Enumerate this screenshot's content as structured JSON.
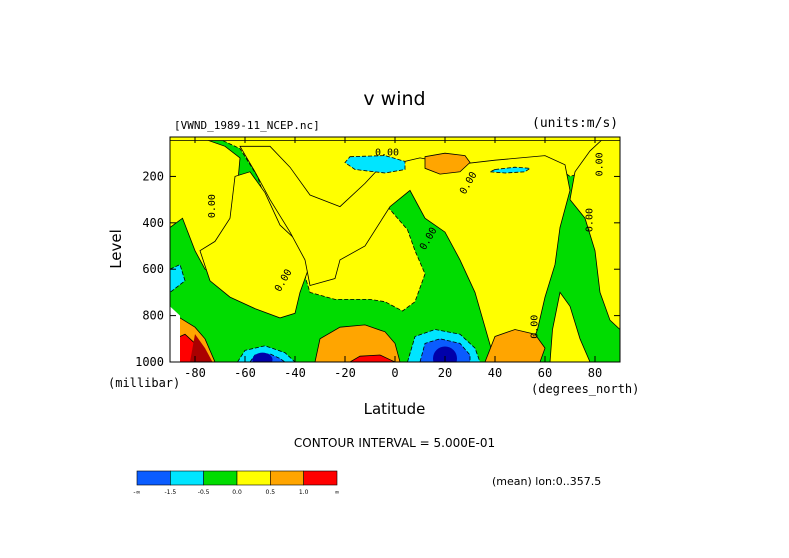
{
  "chart_data": {
    "type": "heatmap",
    "title": "v wind",
    "file_label": "[VWND_1989-11_NCEP.nc]",
    "units_label": "(units:m/s)",
    "xlabel": "Latitude",
    "x_unit_label": "(degrees_north)",
    "ylabel": "Level",
    "y_unit_label": "(millibar)",
    "xlim": [
      -90,
      90
    ],
    "ylim": [
      1000,
      30
    ],
    "x_ticks": [
      -80,
      -60,
      -40,
      -20,
      0,
      20,
      40,
      60,
      80
    ],
    "x_tick_labels": [
      "-80",
      "-60",
      "-40",
      "-20",
      "0",
      "20",
      "40",
      "60",
      "80"
    ],
    "y_ticks": [
      200,
      400,
      600,
      800,
      1000
    ],
    "y_tick_labels": [
      "200",
      "400",
      "600",
      "800",
      "1000"
    ],
    "contour_interval_label": "CONTOUR INTERVAL = 5.000E-01",
    "mean_label": "(mean) lon:0..357.5",
    "contour_label_text": "0.00",
    "levels": [
      {
        "name": "lt_-1.5",
        "color": "#0a5cff"
      },
      {
        "name": "-1.5_-0.5",
        "color": "#00e5ff"
      },
      {
        "name": "-0.5_0.0",
        "color": "#00dc00"
      },
      {
        "name": "0.0_0.5",
        "color": "#ffff00"
      },
      {
        "name": "0.5_1.0",
        "color": "#ffa500"
      },
      {
        "name": "gt_1.0",
        "color": "#ff0000"
      }
    ],
    "colorbar_tick_labels": [
      "-∞",
      "-1.5",
      "-0.5",
      "0.0",
      "0.5",
      "1.0",
      "∞"
    ],
    "extra_color_dark_blue": "#0000aa",
    "extra_color_dark_red": "#aa0000",
    "regions": [
      {
        "level": 2,
        "points": [
          [
            -90,
            1000
          ],
          [
            -90,
            40
          ],
          [
            -70,
            40
          ],
          [
            -62,
            80
          ],
          [
            -55,
            200
          ],
          [
            -48,
            420
          ],
          [
            -42,
            520
          ],
          [
            -38,
            560
          ],
          [
            -34,
            700
          ],
          [
            -24,
            730
          ],
          [
            -10,
            730
          ],
          [
            -4,
            740
          ],
          [
            3,
            780
          ],
          [
            8,
            740
          ],
          [
            12,
            620
          ],
          [
            8,
            520
          ],
          [
            5,
            430
          ],
          [
            -3,
            330
          ],
          [
            -5,
            260
          ],
          [
            -2,
            190
          ],
          [
            6,
            140
          ],
          [
            20,
            160
          ],
          [
            30,
            300
          ],
          [
            40,
            350
          ],
          [
            50,
            160
          ],
          [
            60,
            120
          ],
          [
            70,
            200
          ],
          [
            82,
            160
          ],
          [
            90,
            280
          ],
          [
            90,
            1000
          ]
        ]
      },
      {
        "level": 3,
        "points": [
          [
            -90,
            40
          ],
          [
            -90,
            420
          ],
          [
            -85,
            380
          ],
          [
            -80,
            520
          ],
          [
            -76,
            600
          ],
          [
            -70,
            620
          ],
          [
            -66,
            560
          ],
          [
            -68,
            420
          ],
          [
            -64,
            360
          ],
          [
            -62,
            120
          ],
          [
            -68,
            70
          ],
          [
            -76,
            40
          ]
        ]
      },
      {
        "level": 3,
        "points": [
          [
            -78,
            520
          ],
          [
            -74,
            650
          ],
          [
            -66,
            720
          ],
          [
            -56,
            770
          ],
          [
            -46,
            810
          ],
          [
            -40,
            790
          ],
          [
            -38,
            700
          ],
          [
            -34,
            580
          ],
          [
            -38,
            490
          ],
          [
            -46,
            410
          ],
          [
            -52,
            270
          ],
          [
            -58,
            180
          ],
          [
            -64,
            200
          ],
          [
            -66,
            380
          ],
          [
            -72,
            480
          ]
        ]
      },
      {
        "level": 3,
        "points": [
          [
            -62,
            70
          ],
          [
            -50,
            70
          ],
          [
            -42,
            160
          ],
          [
            -34,
            280
          ],
          [
            -22,
            330
          ],
          [
            -12,
            230
          ],
          [
            -6,
            160
          ],
          [
            10,
            120
          ],
          [
            24,
            150
          ],
          [
            40,
            130
          ],
          [
            60,
            110
          ],
          [
            68,
            150
          ],
          [
            70,
            260
          ],
          [
            66,
            420
          ],
          [
            64,
            580
          ],
          [
            60,
            720
          ],
          [
            57,
            860
          ],
          [
            52,
            1000
          ],
          [
            40,
            1000
          ],
          [
            32,
            700
          ],
          [
            26,
            560
          ],
          [
            20,
            440
          ],
          [
            12,
            380
          ],
          [
            6,
            260
          ],
          [
            -2,
            330
          ],
          [
            -12,
            500
          ],
          [
            -22,
            560
          ],
          [
            -24,
            640
          ],
          [
            -34,
            670
          ],
          [
            -36,
            560
          ],
          [
            -42,
            440
          ],
          [
            -50,
            300
          ],
          [
            -56,
            180
          ]
        ]
      },
      {
        "level": 3,
        "points": [
          [
            70,
            300
          ],
          [
            76,
            380
          ],
          [
            80,
            520
          ],
          [
            82,
            700
          ],
          [
            86,
            820
          ],
          [
            90,
            860
          ],
          [
            90,
            30
          ],
          [
            84,
            30
          ],
          [
            78,
            90
          ],
          [
            72,
            180
          ]
        ]
      },
      {
        "level": 3,
        "points": [
          [
            66,
            700
          ],
          [
            70,
            760
          ],
          [
            74,
            900
          ],
          [
            78,
            1000
          ],
          [
            62,
            1000
          ],
          [
            63,
            860
          ]
        ]
      },
      {
        "level": 3,
        "points": [
          [
            -90,
            30
          ],
          [
            90,
            30
          ],
          [
            90,
            45
          ],
          [
            -90,
            45
          ]
        ]
      },
      {
        "level": 1,
        "points": [
          [
            -18,
            115
          ],
          [
            -4,
            110
          ],
          [
            4,
            135
          ],
          [
            4,
            170
          ],
          [
            -4,
            185
          ],
          [
            -16,
            170
          ],
          [
            -20,
            140
          ]
        ]
      },
      {
        "level": 1,
        "points": [
          [
            40,
            170
          ],
          [
            48,
            160
          ],
          [
            54,
            165
          ],
          [
            52,
            180
          ],
          [
            44,
            185
          ],
          [
            38,
            180
          ]
        ]
      },
      {
        "level": 4,
        "points": [
          [
            12,
            115
          ],
          [
            20,
            100
          ],
          [
            28,
            110
          ],
          [
            30,
            140
          ],
          [
            26,
            180
          ],
          [
            18,
            190
          ],
          [
            12,
            165
          ]
        ]
      },
      {
        "level": 4,
        "points": [
          [
            -32,
            1000
          ],
          [
            -30,
            900
          ],
          [
            -22,
            850
          ],
          [
            -12,
            840
          ],
          [
            -4,
            870
          ],
          [
            0,
            920
          ],
          [
            2,
            1000
          ]
        ]
      },
      {
        "level": 5,
        "points": [
          [
            -18,
            1000
          ],
          [
            -14,
            975
          ],
          [
            -6,
            970
          ],
          [
            -2,
            990
          ],
          [
            0,
            1000
          ]
        ]
      },
      {
        "level": 4,
        "points": [
          [
            36,
            1000
          ],
          [
            40,
            890
          ],
          [
            48,
            860
          ],
          [
            56,
            880
          ],
          [
            60,
            940
          ],
          [
            58,
            1000
          ]
        ]
      },
      {
        "level": 4,
        "points": [
          [
            -90,
            830
          ],
          [
            -86,
            810
          ],
          [
            -80,
            850
          ],
          [
            -76,
            900
          ],
          [
            -72,
            1000
          ],
          [
            -90,
            1000
          ]
        ]
      },
      {
        "level": 5,
        "points": [
          [
            -88,
            900
          ],
          [
            -84,
            880
          ],
          [
            -80,
            920
          ],
          [
            -76,
            1000
          ],
          [
            -90,
            1000
          ]
        ]
      },
      {
        "level": 1,
        "points": [
          [
            -63,
            1000
          ],
          [
            -60,
            950
          ],
          [
            -52,
            930
          ],
          [
            -44,
            960
          ],
          [
            -40,
            1000
          ]
        ]
      },
      {
        "level": 0,
        "points": [
          [
            -58,
            1000
          ],
          [
            -56,
            970
          ],
          [
            -50,
            965
          ],
          [
            -46,
            985
          ],
          [
            -44,
            1000
          ]
        ]
      },
      {
        "level": 1,
        "points": [
          [
            5,
            1000
          ],
          [
            8,
            890
          ],
          [
            16,
            860
          ],
          [
            26,
            880
          ],
          [
            32,
            940
          ],
          [
            34,
            1000
          ]
        ]
      },
      {
        "level": 0,
        "points": [
          [
            10,
            1000
          ],
          [
            12,
            920
          ],
          [
            18,
            900
          ],
          [
            26,
            920
          ],
          [
            30,
            970
          ],
          [
            30,
            1000
          ]
        ]
      },
      {
        "level": 1,
        "points": [
          [
            -90,
            600
          ],
          [
            -86,
            580
          ],
          [
            -84,
            650
          ],
          [
            -90,
            700
          ]
        ]
      }
    ]
  }
}
